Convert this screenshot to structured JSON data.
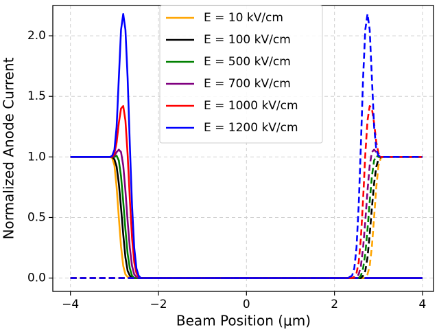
{
  "chart_data": {
    "type": "line",
    "xlabel": "Beam Position (μm)",
    "ylabel": "Normalized Anode Current",
    "x": [
      -4,
      -3.1,
      -3.05,
      -3,
      -2.95,
      -2.9,
      -2.85,
      -2.8,
      -2.75,
      -2.7,
      -2.65,
      -2.6,
      -2.55,
      -2.5,
      -2.45,
      -2.4,
      -2.3,
      2.3,
      2.4,
      2.45,
      2.5,
      2.55,
      2.6,
      2.65,
      2.7,
      2.75,
      2.8,
      2.85,
      2.9,
      2.95,
      3,
      3.05,
      3.1,
      4
    ],
    "series": [
      {
        "name": "E = 10 kV/cm",
        "color": "orange",
        "linestyle": "solid",
        "values": [
          1,
          1,
          0.99,
          0.93,
          0.75,
          0.5,
          0.26,
          0.1,
          0.03,
          0.01,
          0,
          0,
          0,
          0,
          0,
          0,
          0,
          0,
          0,
          0,
          0,
          0,
          0,
          0,
          0,
          0,
          0,
          0,
          0,
          0,
          0,
          0,
          0,
          0
        ]
      },
      {
        "name": "E = 100 kV/cm",
        "color": "black",
        "linestyle": "solid",
        "values": [
          1,
          1,
          1,
          0.98,
          0.92,
          0.78,
          0.58,
          0.36,
          0.17,
          0.06,
          0.02,
          0,
          0,
          0,
          0,
          0,
          0,
          0,
          0,
          0,
          0,
          0,
          0,
          0,
          0,
          0,
          0,
          0,
          0,
          0,
          0,
          0,
          0,
          0
        ]
      },
      {
        "name": "E = 500 kV/cm",
        "color": "green",
        "linestyle": "solid",
        "values": [
          1,
          1,
          1,
          1,
          1.01,
          0.97,
          0.84,
          0.63,
          0.4,
          0.2,
          0.08,
          0.02,
          0,
          0,
          0,
          0,
          0,
          0,
          0,
          0,
          0,
          0,
          0,
          0,
          0,
          0,
          0,
          0,
          0,
          0,
          0,
          0,
          0,
          0
        ]
      },
      {
        "name": "E = 700 kV/cm",
        "color": "purple",
        "linestyle": "solid",
        "values": [
          1,
          1,
          1,
          1.01,
          1.04,
          1.06,
          1.04,
          0.93,
          0.72,
          0.47,
          0.25,
          0.1,
          0.03,
          0.01,
          0,
          0,
          0,
          0,
          0,
          0,
          0,
          0,
          0,
          0,
          0,
          0,
          0,
          0,
          0,
          0,
          0,
          0,
          0,
          0
        ]
      },
      {
        "name": "E = 1000 kV/cm",
        "color": "red",
        "linestyle": "solid",
        "values": [
          1,
          1,
          1,
          1.03,
          1.12,
          1.28,
          1.4,
          1.42,
          1.3,
          1.02,
          0.65,
          0.33,
          0.13,
          0.04,
          0.01,
          0,
          0,
          0,
          0,
          0,
          0,
          0,
          0,
          0,
          0,
          0,
          0,
          0,
          0,
          0,
          0,
          0,
          0,
          0
        ]
      },
      {
        "name": "E = 1200 kV/cm",
        "color": "blue",
        "linestyle": "solid",
        "values": [
          1,
          1,
          1.01,
          1.06,
          1.25,
          1.65,
          2.05,
          2.18,
          2.05,
          1.65,
          1.1,
          0.6,
          0.25,
          0.08,
          0.02,
          0,
          0,
          0,
          0,
          0,
          0,
          0,
          0,
          0,
          0,
          0,
          0,
          0,
          0,
          0,
          0,
          0,
          0,
          0
        ]
      },
      {
        "color": "orange",
        "linestyle": "dashed",
        "values": [
          0,
          0,
          0,
          0,
          0,
          0,
          0,
          0,
          0,
          0,
          0,
          0,
          0,
          0,
          0,
          0,
          0,
          0,
          0,
          0,
          0,
          0,
          0,
          0,
          0.01,
          0.03,
          0.1,
          0.26,
          0.5,
          0.75,
          0.93,
          0.99,
          1,
          1
        ]
      },
      {
        "color": "black",
        "linestyle": "dashed",
        "values": [
          0,
          0,
          0,
          0,
          0,
          0,
          0,
          0,
          0,
          0,
          0,
          0,
          0,
          0,
          0,
          0,
          0,
          0,
          0,
          0,
          0,
          0,
          0,
          0.02,
          0.06,
          0.17,
          0.36,
          0.58,
          0.78,
          0.92,
          0.98,
          1,
          1,
          1
        ]
      },
      {
        "color": "green",
        "linestyle": "dashed",
        "values": [
          0,
          0,
          0,
          0,
          0,
          0,
          0,
          0,
          0,
          0,
          0,
          0,
          0,
          0,
          0,
          0,
          0,
          0,
          0,
          0,
          0,
          0,
          0.02,
          0.08,
          0.2,
          0.4,
          0.63,
          0.84,
          0.97,
          1.01,
          1,
          1,
          1,
          1
        ]
      },
      {
        "color": "purple",
        "linestyle": "dashed",
        "values": [
          0,
          0,
          0,
          0,
          0,
          0,
          0,
          0,
          0,
          0,
          0,
          0,
          0,
          0,
          0,
          0,
          0,
          0,
          0,
          0,
          0.01,
          0.03,
          0.1,
          0.25,
          0.47,
          0.72,
          0.93,
          1.04,
          1.06,
          1.04,
          1.01,
          1,
          1,
          1
        ]
      },
      {
        "color": "red",
        "linestyle": "dashed",
        "values": [
          0,
          0,
          0,
          0,
          0,
          0,
          0,
          0,
          0,
          0,
          0,
          0,
          0,
          0,
          0,
          0,
          0,
          0,
          0,
          0.01,
          0.04,
          0.13,
          0.33,
          0.65,
          1.02,
          1.3,
          1.42,
          1.4,
          1.28,
          1.12,
          1.03,
          1,
          1,
          1
        ]
      },
      {
        "color": "blue",
        "linestyle": "dashed",
        "values": [
          0,
          0,
          0,
          0,
          0,
          0,
          0,
          0,
          0,
          0,
          0,
          0,
          0,
          0,
          0,
          0,
          0,
          0,
          0.02,
          0.08,
          0.25,
          0.6,
          1.1,
          1.65,
          2.05,
          2.18,
          2.05,
          1.65,
          1.25,
          1.06,
          1.01,
          1,
          1,
          1
        ]
      }
    ],
    "xlim": [
      -4.4,
      4.25
    ],
    "ylim": [
      -0.11,
      2.25
    ],
    "xticks": [
      {
        "value": -4,
        "label": "−4"
      },
      {
        "value": -2,
        "label": "−2"
      },
      0,
      2,
      4
    ],
    "yticks": [
      {
        "value": 0,
        "label": "0.0"
      },
      {
        "value": 0.5,
        "label": "0.5"
      },
      {
        "value": 1,
        "label": "1.0"
      },
      {
        "value": 1.5,
        "label": "1.5"
      },
      {
        "value": 2,
        "label": "2.0"
      }
    ],
    "grid": true,
    "legend": "upper center"
  }
}
